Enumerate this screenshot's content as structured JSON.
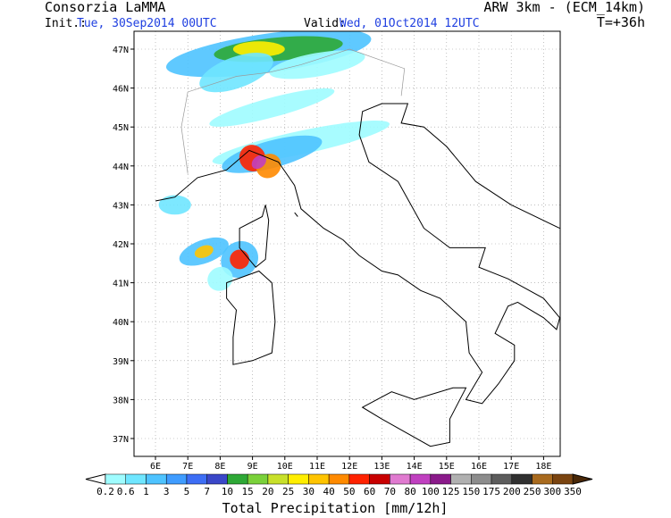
{
  "header": {
    "title": "Consorzia LaMMA",
    "model": "ARW 3km - (ECM_14km)",
    "init_label": "Init.:",
    "init_time": "Tue, 30Sep2014 00UTC",
    "valid_label": "Valid:",
    "valid_time": "Wed, 01Oct2014 12UTC",
    "lead_time": "T=+36h"
  },
  "map": {
    "lat_labels": [
      "47N",
      "46N",
      "45N",
      "44N",
      "43N",
      "42N",
      "41N",
      "40N",
      "39N",
      "38N",
      "37N"
    ],
    "lon_labels": [
      "6E",
      "7E",
      "8E",
      "9E",
      "10E",
      "11E",
      "12E",
      "13E",
      "14E",
      "15E",
      "16E",
      "17E",
      "18E"
    ]
  },
  "colorbar": {
    "title": "Total Precipitation [mm/12h]",
    "labels": [
      "0.2",
      "0.6",
      "1",
      "3",
      "5",
      "7",
      "10",
      "15",
      "20",
      "25",
      "30",
      "40",
      "50",
      "60",
      "70",
      "80",
      "100",
      "125",
      "150",
      "175",
      "200",
      "250",
      "300",
      "350"
    ],
    "colors": [
      "#9ffcff",
      "#6fe6ff",
      "#4ec3ff",
      "#3f9cff",
      "#3d6ef5",
      "#3a47c8",
      "#2ea836",
      "#7ad13a",
      "#c8e02a",
      "#ffee00",
      "#ffc400",
      "#ff8a00",
      "#ff2200",
      "#c80000",
      "#e07ad0",
      "#c040c0",
      "#8a1a8a",
      "#b0b0b0",
      "#8c8c8c",
      "#5c5c5c",
      "#303030",
      "#a86a1e",
      "#7a4410"
    ]
  }
}
